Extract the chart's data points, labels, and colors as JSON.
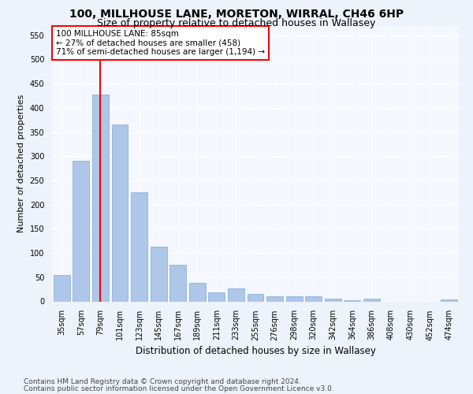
{
  "title1": "100, MILLHOUSE LANE, MORETON, WIRRAL, CH46 6HP",
  "title2": "Size of property relative to detached houses in Wallasey",
  "xlabel": "Distribution of detached houses by size in Wallasey",
  "ylabel": "Number of detached properties",
  "categories": [
    "35sqm",
    "57sqm",
    "79sqm",
    "101sqm",
    "123sqm",
    "145sqm",
    "167sqm",
    "189sqm",
    "211sqm",
    "233sqm",
    "255sqm",
    "276sqm",
    "298sqm",
    "320sqm",
    "342sqm",
    "364sqm",
    "386sqm",
    "408sqm",
    "430sqm",
    "452sqm",
    "474sqm"
  ],
  "values": [
    55,
    290,
    428,
    365,
    225,
    113,
    75,
    38,
    18,
    27,
    15,
    10,
    10,
    10,
    5,
    3,
    5,
    0,
    0,
    0,
    4
  ],
  "bar_color": "#aec6e8",
  "bar_edge_color": "#8ab4d8",
  "red_line_x": 2,
  "annotation_line1": "100 MILLHOUSE LANE: 85sqm",
  "annotation_line2": "← 27% of detached houses are smaller (458)",
  "annotation_line3": "71% of semi-detached houses are larger (1,194) →",
  "annotation_box_color": "white",
  "annotation_box_edge_color": "red",
  "ylim": [
    0,
    570
  ],
  "yticks": [
    0,
    50,
    100,
    150,
    200,
    250,
    300,
    350,
    400,
    450,
    500,
    550
  ],
  "footer1": "Contains HM Land Registry data © Crown copyright and database right 2024.",
  "footer2": "Contains public sector information licensed under the Open Government Licence v3.0.",
  "bg_color": "#eef2fb",
  "plot_bg_color": "#f5f7fe",
  "title1_fontsize": 10,
  "title2_fontsize": 9,
  "xlabel_fontsize": 8.5,
  "ylabel_fontsize": 8,
  "tick_fontsize": 7,
  "footer_fontsize": 6.5,
  "annot_fontsize": 7.5
}
